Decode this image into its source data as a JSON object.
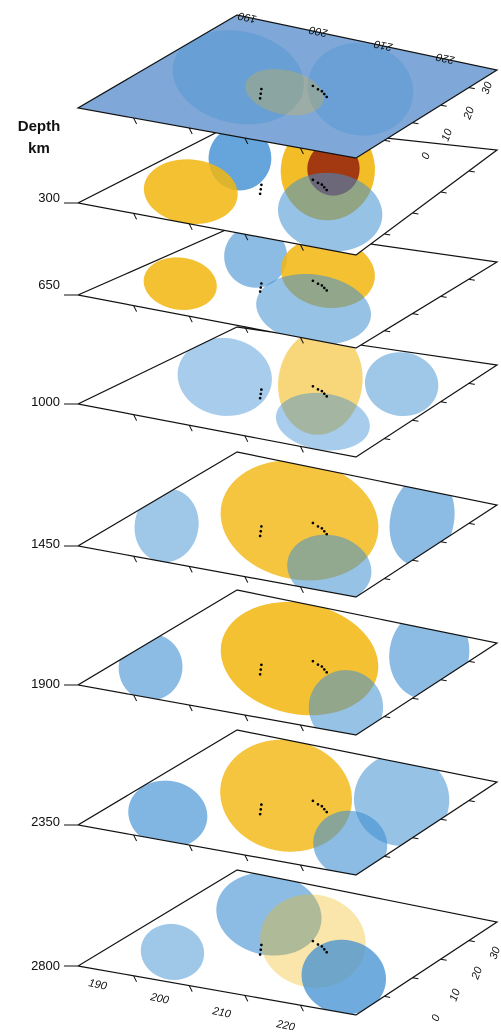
{
  "depth_axis": {
    "title_line1": "Depth",
    "title_line2": "km"
  },
  "slices": [
    {
      "depth": "",
      "kind": "topography"
    },
    {
      "depth": "300"
    },
    {
      "depth": "650"
    },
    {
      "depth": "1000"
    },
    {
      "depth": "1450"
    },
    {
      "depth": "1900"
    },
    {
      "depth": "2350"
    },
    {
      "depth": "2800"
    }
  ],
  "top_axis_labels": [
    "190",
    "200",
    "210",
    "220"
  ],
  "top_side_labels": [
    "30",
    "20",
    "10",
    "0"
  ],
  "bottom_axis_labels": [
    "190",
    "200",
    "210",
    "220"
  ],
  "bottom_side_labels": [
    "30",
    "20",
    "10",
    "0"
  ],
  "colors": {
    "fast": "#3f8fd2",
    "neutral": "#ffffff",
    "slow": "#f2b60f",
    "very_slow": "#9a2a10",
    "topography": "#7fa8d8"
  }
}
